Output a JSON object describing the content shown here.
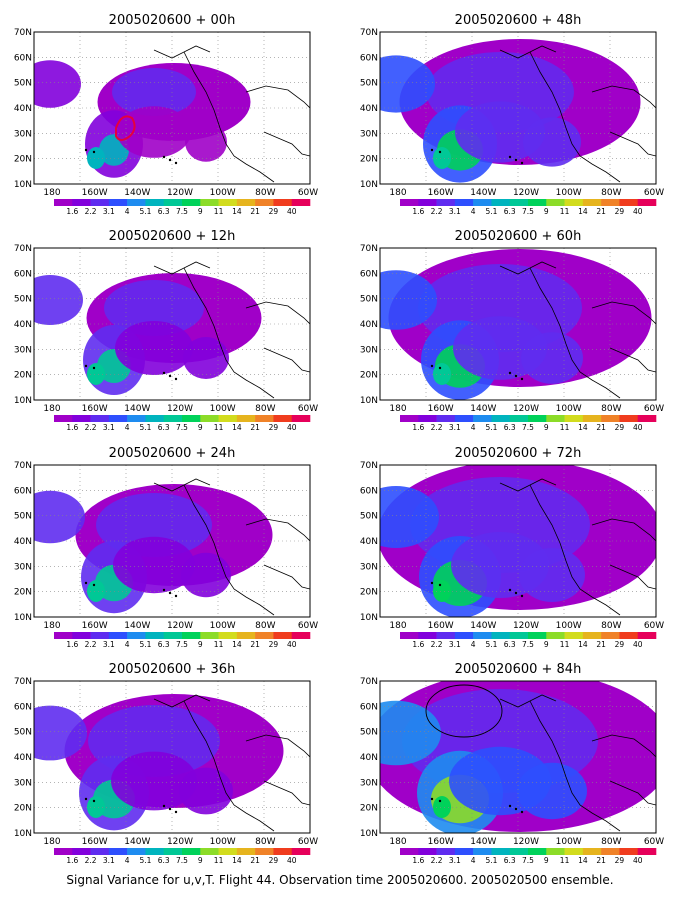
{
  "caption": "Signal Variance for u,v,T. Flight 44. Observation time 2005020600. 2005020500 ensemble.",
  "axes": {
    "lat_labels": [
      "70N",
      "60N",
      "50N",
      "40N",
      "30N",
      "20N",
      "10N"
    ],
    "lon_labels": [
      "180",
      "160W",
      "140W",
      "120W",
      "100W",
      "80W",
      "60W"
    ]
  },
  "colorbar": {
    "labels": [
      "1.6",
      "2.2",
      "3.1",
      "4",
      "5.1",
      "6.3",
      "7.5",
      "9",
      "11",
      "14",
      "21",
      "29",
      "40"
    ],
    "colors": [
      "#a000c8",
      "#8200dc",
      "#5f2cf0",
      "#2e4ffe",
      "#1e8cf0",
      "#00b4be",
      "#00c896",
      "#00d25a",
      "#8cdc28",
      "#d2dc1e",
      "#e6b41e",
      "#f08228",
      "#f03c1e",
      "#e6005a"
    ]
  },
  "panels": [
    {
      "id": "00h",
      "title": "2005020600 + 00h",
      "intensity": 0.15
    },
    {
      "id": "48h",
      "title": "2005020600 + 48h",
      "intensity": 0.55
    },
    {
      "id": "12h",
      "title": "2005020600 + 12h",
      "intensity": 0.25
    },
    {
      "id": "60h",
      "title": "2005020600 + 60h",
      "intensity": 0.65
    },
    {
      "id": "24h",
      "title": "2005020600 + 24h",
      "intensity": 0.35
    },
    {
      "id": "72h",
      "title": "2005020600 + 72h",
      "intensity": 0.75
    },
    {
      "id": "36h",
      "title": "2005020600 + 36h",
      "intensity": 0.45
    },
    {
      "id": "84h",
      "title": "2005020600 + 84h",
      "intensity": 0.85
    }
  ]
}
